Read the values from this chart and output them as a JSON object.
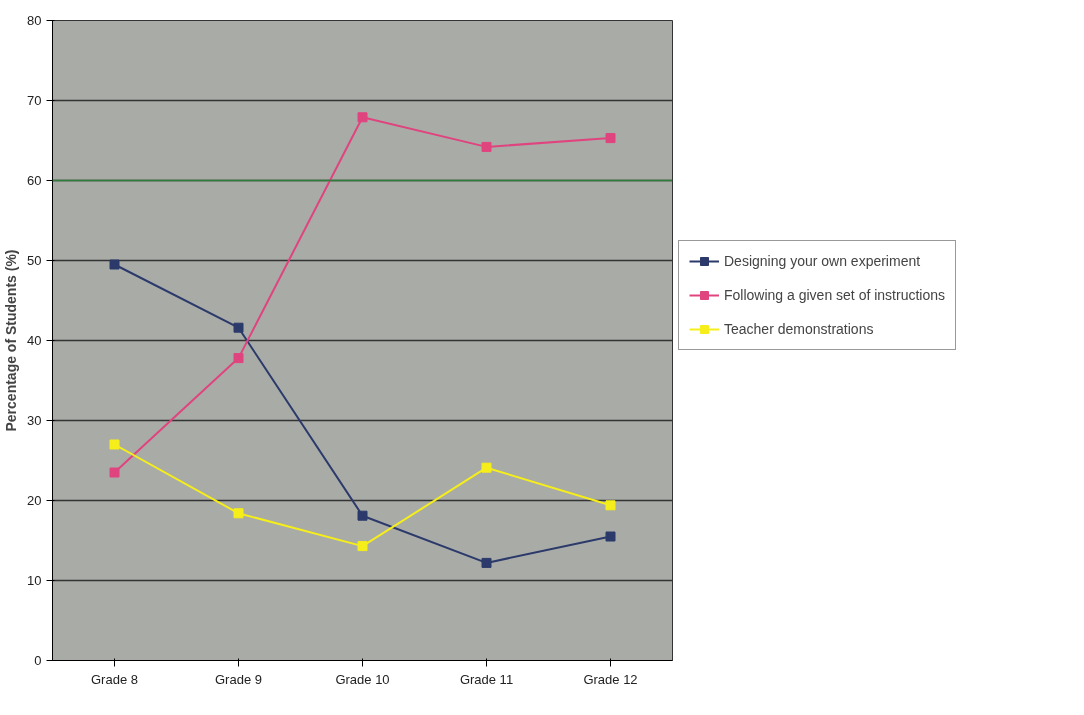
{
  "chart_data": {
    "type": "line",
    "ylabel": "Percentage of Students (%)",
    "categories": [
      "Grade 8",
      "Grade 9",
      "Grade 10",
      "Grade 11",
      "Grade 12"
    ],
    "series": [
      {
        "name": "Designing your own experiment",
        "color": "#2b3a6b",
        "values": [
          49.5,
          41.6,
          18.1,
          12.2,
          15.5
        ]
      },
      {
        "name": "Following a given set of instructions",
        "color": "#e0447f",
        "values": [
          23.5,
          37.8,
          67.9,
          64.2,
          65.3
        ]
      },
      {
        "name": "Teacher demonstrations",
        "color": "#f5ee1a",
        "values": [
          27.0,
          18.4,
          14.3,
          24.1,
          19.4
        ]
      }
    ],
    "ylim": [
      0,
      80
    ],
    "yticks": [
      0,
      10,
      20,
      30,
      40,
      50,
      60,
      70,
      80
    ],
    "grid": "y",
    "legend": "right",
    "marker": "square",
    "ref_lines": [
      {
        "axis": "y",
        "value": 60,
        "color": "#2e7d3a"
      }
    ]
  }
}
